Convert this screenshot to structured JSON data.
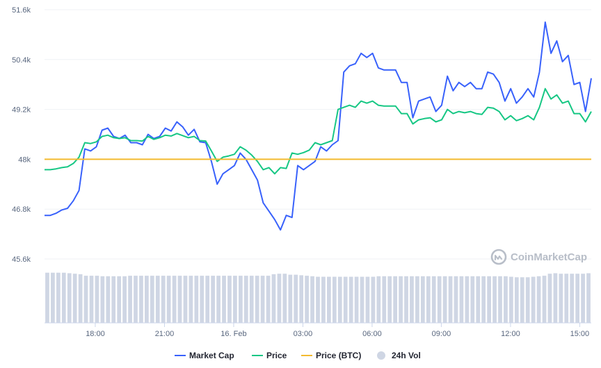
{
  "chart_data": {
    "type": "line",
    "title": "",
    "xlabel": "",
    "ylabel": "",
    "ylim": [
      45600,
      51600
    ],
    "yticks": [
      "51.6k",
      "50.4k",
      "49.2k",
      "48k",
      "46.8k",
      "45.6k"
    ],
    "ytick_values": [
      51600,
      50400,
      49200,
      48000,
      46800,
      45600
    ],
    "xticks": [
      "18:00",
      "21:00",
      "16. Feb",
      "03:00",
      "06:00",
      "09:00",
      "12:00",
      "15:00"
    ],
    "xtick_hours": [
      18,
      21,
      24,
      27,
      30,
      33,
      36,
      39
    ],
    "x_start_hour": 15.8,
    "x_end_hour": 39.5,
    "grid": true,
    "legend_position": "bottom",
    "series": [
      {
        "name": "Market Cap",
        "color": "#3861fb",
        "type": "line",
        "values": [
          46650,
          46650,
          46700,
          46780,
          46820,
          47000,
          47250,
          48250,
          48200,
          48300,
          48700,
          48750,
          48550,
          48500,
          48580,
          48400,
          48400,
          48350,
          48600,
          48500,
          48550,
          48750,
          48680,
          48900,
          48780,
          48580,
          48720,
          48420,
          48400,
          47950,
          47400,
          47650,
          47750,
          47850,
          48150,
          48000,
          47750,
          47500,
          46950,
          46750,
          46550,
          46300,
          46650,
          46600,
          47850,
          47750,
          47850,
          47950,
          48300,
          48200,
          48350,
          48450,
          50100,
          50250,
          50300,
          50550,
          50450,
          50550,
          50200,
          50150,
          50150,
          50150,
          49850,
          49850,
          49000,
          49400,
          49450,
          49500,
          49150,
          49300,
          50000,
          49650,
          49850,
          49750,
          49850,
          49700,
          49700,
          50100,
          50050,
          49850,
          49400,
          49700,
          49350,
          49500,
          49700,
          49500,
          50100,
          51300,
          50550,
          50850,
          50350,
          50500,
          49800,
          49850,
          49150,
          49950
        ]
      },
      {
        "name": "Price",
        "color": "#16c784",
        "type": "line",
        "values": [
          47750,
          47750,
          47770,
          47800,
          47820,
          47900,
          48050,
          48400,
          48380,
          48420,
          48550,
          48580,
          48520,
          48500,
          48520,
          48450,
          48450,
          48440,
          48550,
          48480,
          48520,
          48580,
          48560,
          48620,
          48570,
          48520,
          48550,
          48450,
          48440,
          48200,
          47950,
          48050,
          48080,
          48120,
          48300,
          48220,
          48100,
          47950,
          47750,
          47800,
          47650,
          47800,
          47780,
          48150,
          48120,
          48160,
          48220,
          48400,
          48350,
          48400,
          48450,
          49200,
          49250,
          49300,
          49250,
          49400,
          49350,
          49400,
          49300,
          49280,
          49280,
          49280,
          49100,
          49100,
          48850,
          48950,
          48980,
          49000,
          48900,
          48950,
          49200,
          49100,
          49150,
          49120,
          49150,
          49100,
          49080,
          49250,
          49230,
          49150,
          48950,
          49050,
          48930,
          48980,
          49050,
          48950,
          49250,
          49700,
          49450,
          49550,
          49350,
          49400,
          49100,
          49100,
          48900,
          49150
        ]
      },
      {
        "name": "Price (BTC)",
        "color": "#f3ba2f",
        "type": "line",
        "values": [
          48000,
          48000
        ]
      },
      {
        "name": "24h Vol",
        "color": "#cfd6e4",
        "type": "bar",
        "relative_values": [
          0.99,
          0.99,
          0.99,
          0.99,
          0.98,
          0.97,
          0.96,
          0.93,
          0.93,
          0.93,
          0.92,
          0.92,
          0.92,
          0.92,
          0.92,
          0.93,
          0.93,
          0.93,
          0.93,
          0.93,
          0.93,
          0.93,
          0.93,
          0.93,
          0.93,
          0.93,
          0.93,
          0.93,
          0.93,
          0.93,
          0.93,
          0.93,
          0.93,
          0.93,
          0.93,
          0.93,
          0.93,
          0.93,
          0.93,
          0.93,
          0.93,
          0.96,
          0.97,
          0.97,
          0.95,
          0.95,
          0.94,
          0.93,
          0.92,
          0.91,
          0.91,
          0.91,
          0.91,
          0.91,
          0.91,
          0.91,
          0.91,
          0.91,
          0.91,
          0.91,
          0.92,
          0.92,
          0.92,
          0.92,
          0.92,
          0.92,
          0.92,
          0.92,
          0.92,
          0.92,
          0.92,
          0.92,
          0.92,
          0.92,
          0.92,
          0.92,
          0.92,
          0.92,
          0.92,
          0.92,
          0.92,
          0.92,
          0.92,
          0.92,
          0.91,
          0.9,
          0.9,
          0.9,
          0.91,
          0.92,
          0.93,
          0.97,
          0.98,
          0.97,
          0.97,
          0.97,
          0.97,
          0.97,
          0.98
        ]
      }
    ]
  },
  "watermark": {
    "text": "CoinMarketCap",
    "icon": "coinmarketcap-logo-icon"
  },
  "legend": [
    {
      "label": "Market Cap",
      "color": "#3861fb",
      "marker": "line"
    },
    {
      "label": "Price",
      "color": "#16c784",
      "marker": "line"
    },
    {
      "label": "Price (BTC)",
      "color": "#f3ba2f",
      "marker": "line"
    },
    {
      "label": "24h Vol",
      "color": "#cfd6e4",
      "marker": "circle"
    }
  ]
}
